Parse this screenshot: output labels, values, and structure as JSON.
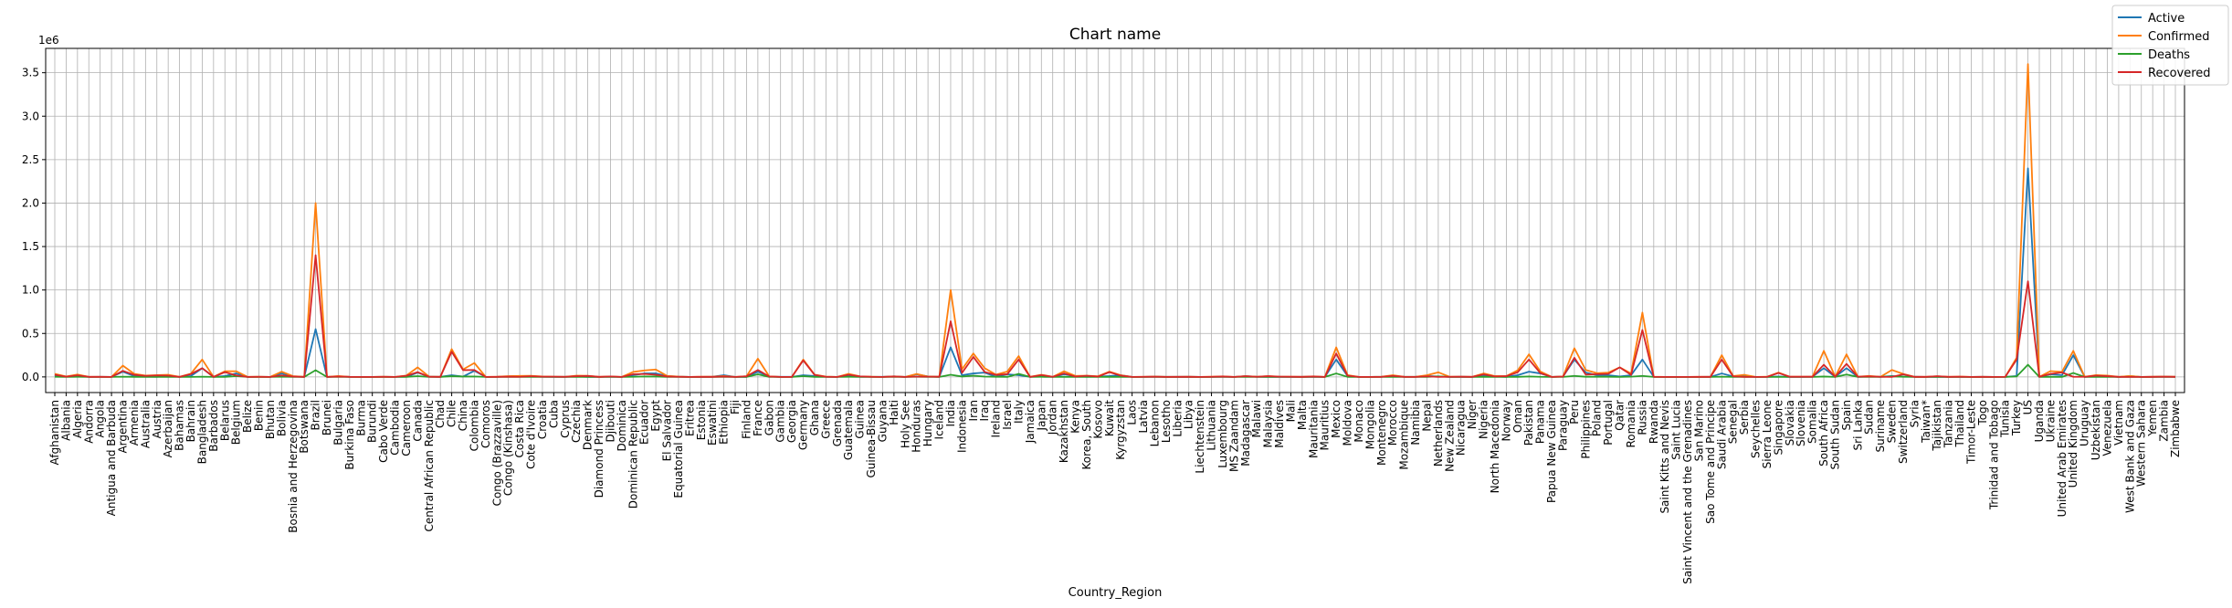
{
  "chart_data": {
    "type": "line",
    "title": "Chart name",
    "xlabel": "Country_Region",
    "ylabel": "",
    "y_offset_label": "1e6",
    "ylim": [
      -0.18,
      3.78
    ],
    "y_ticks": [
      0.0,
      0.5,
      1.0,
      1.5,
      2.0,
      2.5,
      3.0,
      3.5
    ],
    "y_tick_labels": [
      "0.0",
      "0.5",
      "1.0",
      "1.5",
      "2.0",
      "2.5",
      "3.0",
      "3.5"
    ],
    "grid": true,
    "legend_position": "top-right",
    "categories": [
      "Afghanistan",
      "Albania",
      "Algeria",
      "Andorra",
      "Angola",
      "Antigua and Barbuda",
      "Argentina",
      "Armenia",
      "Australia",
      "Austria",
      "Azerbaijan",
      "Bahamas",
      "Bahrain",
      "Bangladesh",
      "Barbados",
      "Belarus",
      "Belgium",
      "Belize",
      "Benin",
      "Bhutan",
      "Bolivia",
      "Bosnia and Herzegovina",
      "Botswana",
      "Brazil",
      "Brunei",
      "Bulgaria",
      "Burkina Faso",
      "Burma",
      "Burundi",
      "Cabo Verde",
      "Cambodia",
      "Cameroon",
      "Canada",
      "Central African Republic",
      "Chad",
      "Chile",
      "China",
      "Colombia",
      "Comoros",
      "Congo (Brazzaville)",
      "Congo (Kinshasa)",
      "Costa Rica",
      "Cote d'Ivoire",
      "Croatia",
      "Cuba",
      "Cyprus",
      "Czechia",
      "Denmark",
      "Diamond Princess",
      "Djibouti",
      "Dominica",
      "Dominican Republic",
      "Ecuador",
      "Egypt",
      "El Salvador",
      "Equatorial Guinea",
      "Eritrea",
      "Estonia",
      "Eswatini",
      "Ethiopia",
      "Fiji",
      "Finland",
      "France",
      "Gabon",
      "Gambia",
      "Georgia",
      "Germany",
      "Ghana",
      "Greece",
      "Grenada",
      "Guatemala",
      "Guinea",
      "Guinea-Bissau",
      "Guyana",
      "Haiti",
      "Holy See",
      "Honduras",
      "Hungary",
      "Iceland",
      "India",
      "Indonesia",
      "Iran",
      "Iraq",
      "Ireland",
      "Israel",
      "Italy",
      "Jamaica",
      "Japan",
      "Jordan",
      "Kazakhstan",
      "Kenya",
      "Korea, South",
      "Kosovo",
      "Kuwait",
      "Kyrgyzstan",
      "Laos",
      "Latvia",
      "Lebanon",
      "Lesotho",
      "Liberia",
      "Libya",
      "Liechtenstein",
      "Lithuania",
      "Luxembourg",
      "MS Zaandam",
      "Madagascar",
      "Malawi",
      "Malaysia",
      "Maldives",
      "Mali",
      "Malta",
      "Mauritania",
      "Mauritius",
      "Mexico",
      "Moldova",
      "Monaco",
      "Mongolia",
      "Montenegro",
      "Morocco",
      "Mozambique",
      "Namibia",
      "Nepal",
      "Netherlands",
      "New Zealand",
      "Nicaragua",
      "Niger",
      "Nigeria",
      "North Macedonia",
      "Norway",
      "Oman",
      "Pakistan",
      "Panama",
      "Papua New Guinea",
      "Paraguay",
      "Peru",
      "Philippines",
      "Poland",
      "Portugal",
      "Qatar",
      "Romania",
      "Russia",
      "Rwanda",
      "Saint Kitts and Nevis",
      "Saint Lucia",
      "Saint Vincent and the Grenadines",
      "San Marino",
      "Sao Tome and Principe",
      "Saudi Arabia",
      "Senegal",
      "Serbia",
      "Seychelles",
      "Sierra Leone",
      "Singapore",
      "Slovakia",
      "Slovenia",
      "Somalia",
      "South Africa",
      "South Sudan",
      "Spain",
      "Sri Lanka",
      "Sudan",
      "Suriname",
      "Sweden",
      "Switzerland",
      "Syria",
      "Taiwan*",
      "Tajikistan",
      "Tanzania",
      "Thailand",
      "Timor-Leste",
      "Togo",
      "Trinidad and Tobago",
      "Tunisia",
      "Turkey",
      "US",
      "Uganda",
      "Ukraine",
      "United Arab Emirates",
      "United Kingdom",
      "Uruguay",
      "Uzbekistan",
      "Venezuela",
      "Vietnam",
      "West Bank and Gaza",
      "Western Sahara",
      "Yemen",
      "Zambia",
      "Zimbabwe"
    ],
    "series": [
      {
        "name": "Active",
        "color": "#1f77b4",
        "values": [
          0.02,
          0.004,
          0.01,
          0.0003,
          0.001,
          0.0001,
          0.06,
          0.01,
          0.003,
          0.002,
          0.01,
          0.0005,
          0.01,
          0.1,
          0.0001,
          0.01,
          0.04,
          0.0001,
          0.001,
          0.0001,
          0.04,
          0.005,
          0.0005,
          0.55,
          0.0001,
          0.005,
          0.001,
          0.0003,
          0.0003,
          0.001,
          0.0001,
          0.0025,
          0.05,
          0.003,
          0.0005,
          0.02,
          0.004,
          0.07,
          0.0001,
          0.001,
          0.005,
          0.01,
          0.005,
          0.002,
          0.0005,
          0.0006,
          0.006,
          0.0007,
          0.0,
          0.001,
          0.0,
          0.02,
          0.04,
          0.04,
          0.009,
          0.003,
          0.0003,
          0.0002,
          0.002,
          0.02,
          0.0,
          0.0003,
          0.06,
          0.004,
          0.0004,
          0.0004,
          0.02,
          0.01,
          0.002,
          0.0,
          0.02,
          0.001,
          0.001,
          0.001,
          0.006,
          0.0,
          0.03,
          0.005,
          0.0004,
          0.34,
          0.02,
          0.04,
          0.05,
          0.001,
          0.03,
          0.02,
          0.0008,
          0.01,
          0.0002,
          0.03,
          0.008,
          0.0009,
          0.004,
          0.01,
          0.02,
          0.0001,
          0.0002,
          0.003,
          0.0005,
          0.0005,
          0.002,
          0.0,
          0.0003,
          0.001,
          0.0,
          0.009,
          0.002,
          0.0003,
          0.0008,
          0.0002,
          0.0004,
          0.002,
          0.0003,
          0.2,
          0.01,
          0.0001,
          0.0001,
          0.002,
          0.01,
          0.001,
          0.002,
          0.01,
          0.005,
          0.0003,
          0.002,
          0.0003,
          0.01,
          0.006,
          0.0007,
          0.02,
          0.06,
          0.04,
          0.0,
          0.005,
          0.2,
          0.05,
          0.02,
          0.02,
          0.005,
          0.02,
          0.2,
          0.0005,
          0.0,
          0.0,
          0.0,
          0.0001,
          0.0005,
          0.04,
          0.005,
          0.008,
          0.0,
          0.0006,
          0.005,
          0.0004,
          0.0002,
          0.002,
          0.1,
          0.001,
          0.1,
          0.0003,
          0.005,
          0.001,
          0.01,
          0.004,
          0.002,
          0.0,
          0.002,
          0.0,
          0.0,
          0.0,
          0.0005,
          0.0,
          0.0002,
          0.01,
          2.4,
          0.001,
          0.03,
          0.02,
          0.25,
          0.0004,
          0.007,
          0.006,
          0.0,
          0.01,
          0.0,
          0.001,
          0.003,
          0.001
        ]
      },
      {
        "name": "Confirmed",
        "color": "#ff7f0e",
        "values": [
          0.036,
          0.005,
          0.028,
          0.0009,
          0.001,
          0.0001,
          0.13,
          0.035,
          0.015,
          0.02,
          0.025,
          0.0007,
          0.037,
          0.2,
          0.0001,
          0.065,
          0.065,
          0.0004,
          0.0017,
          0.0001,
          0.06,
          0.009,
          0.0005,
          2.0,
          0.0001,
          0.0095,
          0.001,
          0.0003,
          0.0003,
          0.002,
          0.0002,
          0.016,
          0.11,
          0.004,
          0.0009,
          0.32,
          0.086,
          0.16,
          0.0003,
          0.0018,
          0.0085,
          0.011,
          0.013,
          0.0045,
          0.0024,
          0.001,
          0.014,
          0.013,
          0.0007,
          0.005,
          0.0,
          0.057,
          0.075,
          0.085,
          0.011,
          0.003,
          0.0003,
          0.002,
          0.002,
          0.01,
          0.0,
          0.0073,
          0.21,
          0.0065,
          0.0001,
          0.001,
          0.2,
          0.026,
          0.004,
          0.0,
          0.035,
          0.006,
          0.0019,
          0.0003,
          0.0068,
          0.0,
          0.034,
          0.0043,
          0.0019,
          1.0,
          0.088,
          0.27,
          0.1,
          0.026,
          0.062,
          0.24,
          0.0008,
          0.025,
          0.0012,
          0.065,
          0.012,
          0.014,
          0.0077,
          0.061,
          0.02,
          0.0,
          0.0011,
          0.0035,
          0.0005,
          0.0012,
          0.0017,
          0.0001,
          0.0019,
          0.0056,
          0.0,
          0.0091,
          0.0025,
          0.0089,
          0.0029,
          0.0024,
          0.0007,
          0.0059,
          0.0003,
          0.34,
          0.021,
          0.0001,
          0.0002,
          0.0022,
          0.02,
          0.0013,
          0.0011,
          0.019,
          0.053,
          0.0016,
          0.0028,
          0.0011,
          0.04,
          0.0095,
          0.0092,
          0.075,
          0.26,
          0.062,
          0.0,
          0.0045,
          0.33,
          0.08,
          0.043,
          0.05,
          0.11,
          0.04,
          0.74,
          0.0018,
          0.0,
          0.0,
          0.0,
          0.0007,
          0.0009,
          0.25,
          0.0096,
          0.024,
          0.0001,
          0.0018,
          0.05,
          0.0021,
          0.0021,
          0.0032,
          0.3,
          0.0022,
          0.26,
          0.0027,
          0.011,
          0.0012,
          0.08,
          0.034,
          0.0007,
          0.0005,
          0.0074,
          0.0005,
          0.0033,
          0.0,
          0.0008,
          0.0001,
          0.0014,
          0.22,
          3.6,
          0.0011,
          0.067,
          0.058,
          0.3,
          0.0012,
          0.021,
          0.015,
          0.0004,
          0.01,
          0.0,
          0.0017,
          0.0035,
          0.002
        ]
      },
      {
        "name": "Deaths",
        "color": "#2ca02c",
        "values": [
          0.0013,
          0.0002,
          0.0012,
          0.0001,
          0.0001,
          0.0,
          0.0025,
          0.0007,
          0.0002,
          0.0007,
          0.0003,
          0.0,
          0.0001,
          0.0026,
          0.0,
          0.0005,
          0.0098,
          0.0,
          0.0,
          0.0,
          0.0022,
          0.0003,
          0.0,
          0.077,
          0.0,
          0.0003,
          0.0001,
          0.0,
          0.0,
          0.0,
          0.0,
          0.0004,
          0.0089,
          0.0001,
          0.0001,
          0.0084,
          0.0047,
          0.0054,
          0.0,
          0.0,
          0.0002,
          0.0001,
          0.0001,
          0.0001,
          0.0001,
          0.0,
          0.0004,
          0.0006,
          0.0,
          0.0001,
          0.0,
          0.001,
          0.0055,
          0.0042,
          0.0003,
          0.0001,
          0.0,
          0.0,
          0.0,
          0.0002,
          0.0,
          0.0003,
          0.03,
          0.0,
          0.0,
          0.0,
          0.0091,
          0.0001,
          0.0002,
          0.0,
          0.0014,
          0.0,
          0.0,
          0.0,
          0.0001,
          0.0,
          0.001,
          0.0006,
          0.0,
          0.025,
          0.0043,
          0.014,
          0.0041,
          0.0018,
          0.0005,
          0.035,
          0.0,
          0.001,
          0.0,
          0.0004,
          0.0002,
          0.0003,
          0.0002,
          0.0004,
          0.0,
          0.0,
          0.0,
          0.0,
          0.0,
          0.0,
          0.0,
          0.0,
          0.0001,
          0.0001,
          0.0,
          0.0001,
          0.0,
          0.0001,
          0.0,
          0.0001,
          0.0,
          0.0,
          0.0,
          0.04,
          0.0007,
          0.0,
          0.0,
          0.0,
          0.0003,
          0.0,
          0.0,
          0.0,
          0.0061,
          0.0,
          0.0001,
          0.0001,
          0.0008,
          0.0004,
          0.0003,
          0.0004,
          0.0055,
          0.0013,
          0.0,
          0.0,
          0.012,
          0.002,
          0.0017,
          0.0017,
          0.0001,
          0.0021,
          0.012,
          0.0,
          0.0,
          0.0,
          0.0,
          0.0,
          0.0,
          0.0025,
          0.0002,
          0.0005,
          0.0,
          0.0001,
          0.0,
          0.0,
          0.0001,
          0.0001,
          0.0044,
          0.0,
          0.028,
          0.0,
          0.0007,
          0.0,
          0.0057,
          0.002,
          0.0,
          0.0,
          0.0001,
          0.0,
          0.0001,
          0.0,
          0.0,
          0.0,
          0.0,
          0.0055,
          0.14,
          0.0,
          0.0016,
          0.0003,
          0.045,
          0.0,
          0.0001,
          0.0001,
          0.0,
          0.0,
          0.0,
          0.0,
          0.0001,
          0.0
        ]
      },
      {
        "name": "Recovered",
        "color": "#d62728",
        "values": [
          0.025,
          0.0028,
          0.018,
          0.0008,
          0.0004,
          0.0001,
          0.07,
          0.024,
          0.012,
          0.017,
          0.014,
          0.0001,
          0.033,
          0.1,
          0.0001,
          0.055,
          0.017,
          0.0,
          0.0013,
          0.0001,
          0.017,
          0.0045,
          0.0,
          1.4,
          0.0001,
          0.0043,
          0.0008,
          0.0003,
          0.0003,
          0.001,
          0.0001,
          0.013,
          0.055,
          0.002,
          0.0007,
          0.29,
          0.078,
          0.08,
          0.0003,
          0.0008,
          0.0033,
          0.0015,
          0.0075,
          0.0025,
          0.0022,
          0.0009,
          0.0082,
          0.011,
          0.0006,
          0.0049,
          0.0,
          0.031,
          0.034,
          0.025,
          0.0043,
          0.0009,
          0.0002,
          0.0007,
          0.0006,
          0.0044,
          0.0,
          0.0069,
          0.08,
          0.0046,
          0.0001,
          0.0008,
          0.19,
          0.023,
          0.0013,
          0.0,
          0.025,
          0.0057,
          0.0009,
          0.0002,
          0.0042,
          0.0,
          0.0038,
          0.0029,
          0.0018,
          0.64,
          0.046,
          0.23,
          0.057,
          0.023,
          0.032,
          0.2,
          0.0004,
          0.021,
          0.0011,
          0.041,
          0.0041,
          0.013,
          0.0039,
          0.055,
          0.015,
          0.0,
          0.001,
          0.0021,
          0.0001,
          0.0006,
          0.0005,
          0.0001,
          0.0015,
          0.0044,
          0.0,
          0.0075,
          0.0009,
          0.0086,
          0.0021,
          0.0016,
          0.0006,
          0.0047,
          0.0003,
          0.27,
          0.014,
          0.0001,
          0.0002,
          0.0008,
          0.012,
          0.0006,
          0.0001,
          0.0065,
          0.0002,
          0.0015,
          0.0017,
          0.0007,
          0.029,
          0.0055,
          0.0087,
          0.053,
          0.2,
          0.044,
          0.0,
          0.0035,
          0.22,
          0.027,
          0.031,
          0.035,
          0.11,
          0.023,
          0.54,
          0.0013,
          0.0,
          0.0,
          0.0,
          0.0006,
          0.0004,
          0.2,
          0.0065,
          0.0,
          0.0001,
          0.0012,
          0.045,
          0.0016,
          0.0017,
          0.0017,
          0.14,
          0.0011,
          0.15,
          0.0024,
          0.0057,
          0.0011,
          0.0,
          0.03,
          0.0004,
          0.0004,
          0.0074,
          0.0005,
          0.0021,
          0.0,
          0.0007,
          0.0001,
          0.0011,
          0.2,
          1.1,
          0.0009,
          0.035,
          0.051,
          0.0013,
          0.0009,
          0.014,
          0.0086,
          0.0004,
          0.0001,
          0.0,
          0.0008,
          0.0028,
          0.0006
        ]
      }
    ]
  }
}
